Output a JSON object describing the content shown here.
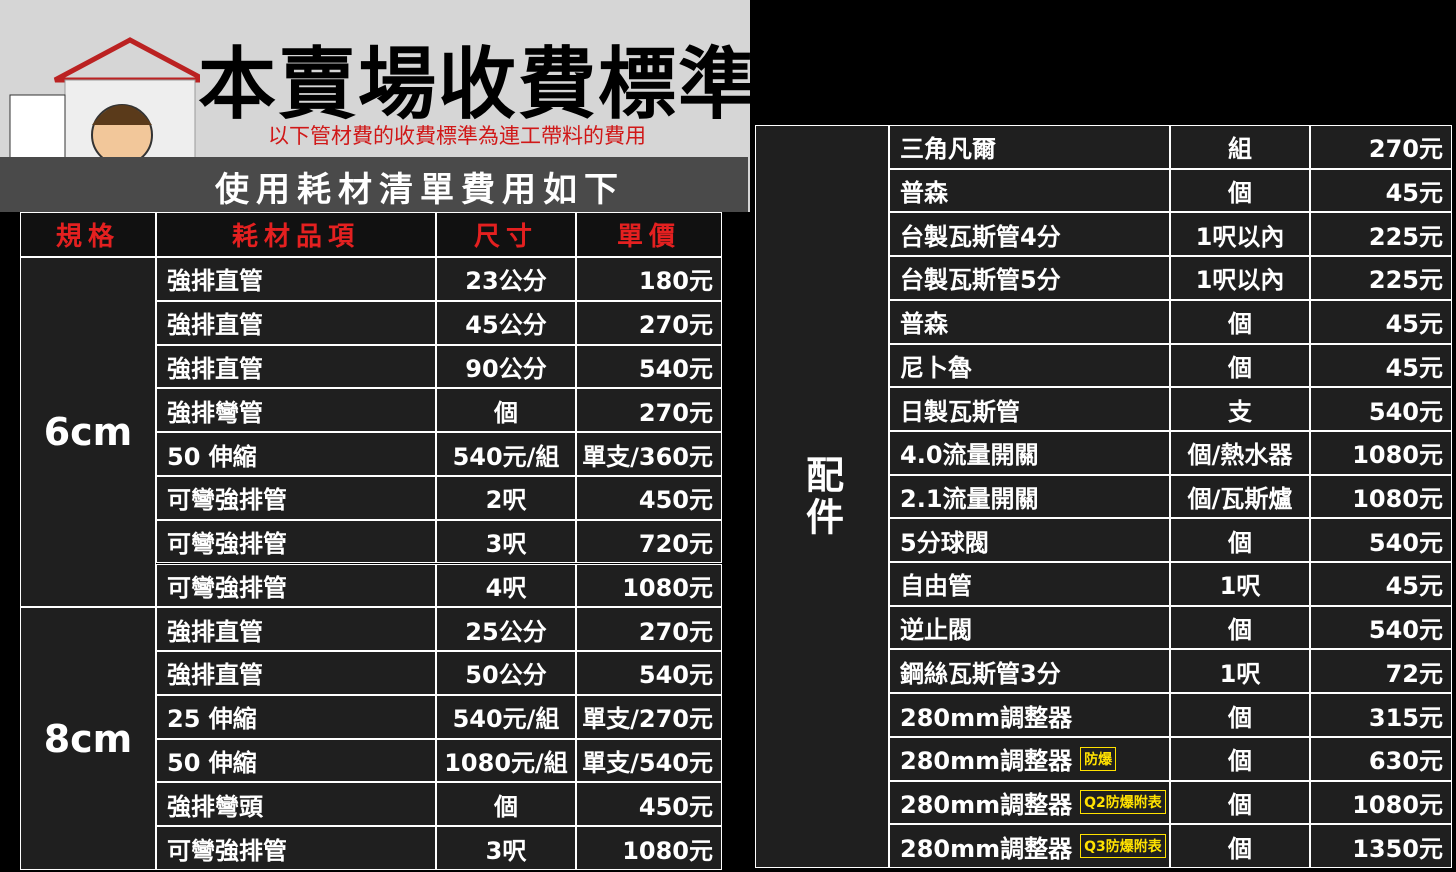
{
  "header": {
    "title": "本賣場收費標準",
    "subtitle": "以下管材費的收費標準為連工帶料的費用",
    "banner": "使用耗材清單費用如下"
  },
  "left_table": {
    "columns": [
      "規格",
      "耗材品項",
      "尺寸",
      "單價"
    ],
    "groups": [
      {
        "spec": "6cm",
        "rows": [
          {
            "item": "強排直管",
            "size": "23公分",
            "price": "180元"
          },
          {
            "item": "強排直管",
            "size": "45公分",
            "price": "270元"
          },
          {
            "item": "強排直管",
            "size": "90公分",
            "price": "540元"
          },
          {
            "item": "強排彎管",
            "size": "個",
            "price": "270元"
          },
          {
            "item": "50 伸縮",
            "size": "540元/組",
            "price": "單支/360元"
          },
          {
            "item": "可彎強排管",
            "size": "2呎",
            "price": "450元"
          },
          {
            "item": "可彎強排管",
            "size": "3呎",
            "price": "720元"
          },
          {
            "item": "可彎強排管",
            "size": "4呎",
            "price": "1080元"
          }
        ]
      },
      {
        "spec": "8cm",
        "rows": [
          {
            "item": "強排直管",
            "size": "25公分",
            "price": "270元"
          },
          {
            "item": "強排直管",
            "size": "50公分",
            "price": "540元"
          },
          {
            "item": "25 伸縮",
            "size": "540元/組",
            "price": "單支/270元"
          },
          {
            "item": "50 伸縮",
            "size": "1080元/組",
            "price": "單支/540元"
          },
          {
            "item": "強排彎頭",
            "size": "個",
            "price": "450元"
          },
          {
            "item": "可彎強排管",
            "size": "3呎",
            "price": "1080元"
          }
        ]
      }
    ]
  },
  "right_table": {
    "group": "配件",
    "rows": [
      {
        "item": "三角凡爾",
        "unit": "組",
        "price": "270元"
      },
      {
        "item": "普森",
        "unit": "個",
        "price": "45元"
      },
      {
        "item": "台製瓦斯管4分",
        "unit": "1呎以內",
        "price": "225元"
      },
      {
        "item": "台製瓦斯管5分",
        "unit": "1呎以內",
        "price": "225元"
      },
      {
        "item": "普森",
        "unit": "個",
        "price": "45元"
      },
      {
        "item": "尼卜魯",
        "unit": "個",
        "price": "45元"
      },
      {
        "item": "日製瓦斯管",
        "unit": "支",
        "price": "540元"
      },
      {
        "item": "4.0流量開關",
        "unit": "個/熱水器",
        "price": "1080元"
      },
      {
        "item": "2.1流量開關",
        "unit": "個/瓦斯爐",
        "price": "1080元"
      },
      {
        "item": "5分球閥",
        "unit": "個",
        "price": "540元"
      },
      {
        "item": "自由管",
        "unit": "1呎",
        "price": "45元"
      },
      {
        "item": "逆止閥",
        "unit": "個",
        "price": "540元"
      },
      {
        "item": "鋼絲瓦斯管3分",
        "unit": "1呎",
        "price": "72元"
      },
      {
        "item": "280mm調整器",
        "unit": "個",
        "price": "315元"
      },
      {
        "item": "280mm調整器",
        "tag": "防爆",
        "unit": "個",
        "price": "630元"
      },
      {
        "item": "280mm調整器",
        "tag": "Q2防爆附表",
        "unit": "個",
        "price": "1080元"
      },
      {
        "item": "280mm調整器",
        "tag": "Q3防爆附表",
        "unit": "個",
        "price": "1350元"
      }
    ]
  }
}
